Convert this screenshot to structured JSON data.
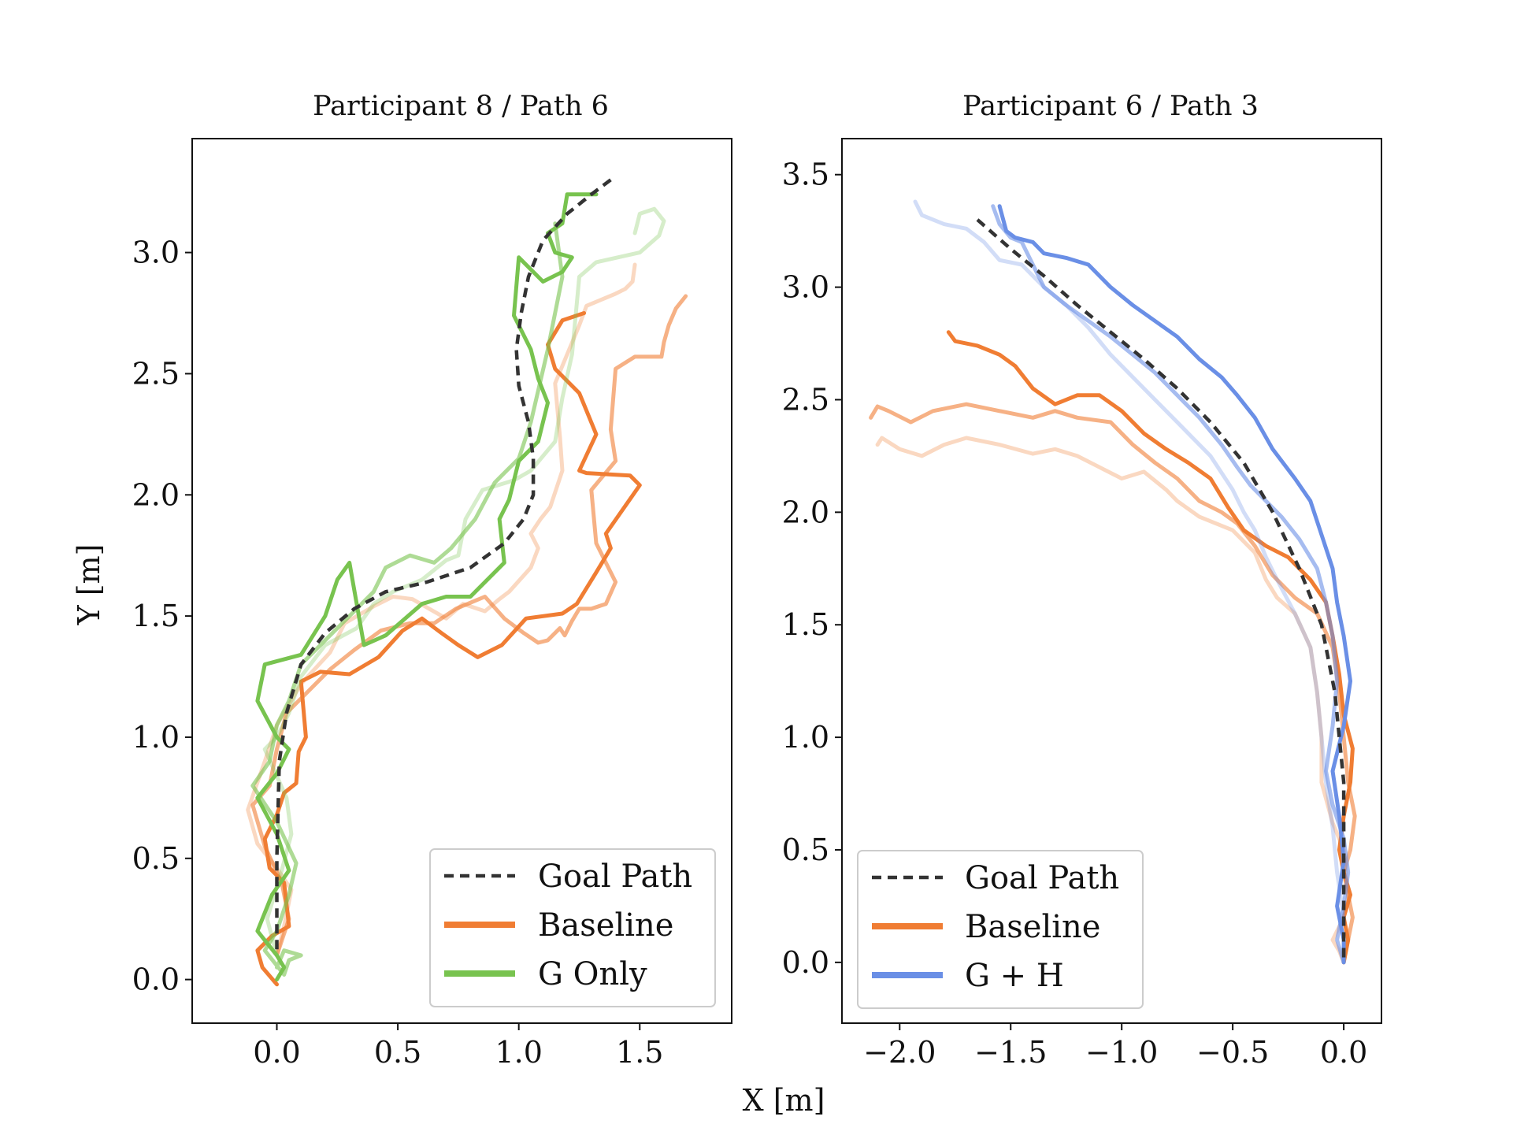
{
  "figure": {
    "xlabel": "X [m]",
    "ylabel": "Y [m]"
  },
  "colors": {
    "goal": "#333333",
    "baseline": "#f07d33",
    "g_only": "#78c34f",
    "g_h": "#6a8fe6"
  },
  "chart_data": [
    {
      "type": "line",
      "title": "Participant 8 / Path 6",
      "xlim": [
        -0.35,
        1.88
      ],
      "ylim": [
        -0.18,
        3.47
      ],
      "xticks": [
        "0.0",
        "0.5",
        "1.0",
        "1.5"
      ],
      "xtick_values": [
        0.0,
        0.5,
        1.0,
        1.5
      ],
      "yticks": [
        "0.0",
        "0.5",
        "1.0",
        "1.5",
        "2.0",
        "2.5",
        "3.0"
      ],
      "ytick_values": [
        0.0,
        0.5,
        1.0,
        1.5,
        2.0,
        2.5,
        3.0
      ],
      "legend": {
        "position": "lower-right",
        "entries": [
          {
            "label": "Goal Path",
            "key": "goal"
          },
          {
            "label": "Baseline",
            "key": "baseline"
          },
          {
            "label": "G Only",
            "key": "g_only"
          }
        ]
      },
      "series": [
        {
          "name": "Baseline",
          "key": "baseline",
          "opacity": 0.3,
          "x": [
            1.48,
            1.47,
            1.44,
            1.4,
            1.28,
            1.25,
            1.15,
            1.17,
            1.18,
            1.13,
            1.09,
            1.05,
            1.08,
            1.05,
            0.96,
            0.92,
            0.86,
            0.77,
            0.7,
            0.63,
            0.56,
            0.48,
            0.4,
            0.28,
            0.22,
            0.1,
            0.0,
            -0.05,
            -0.12,
            -0.08,
            0.0,
            0.06,
            0.03,
            0.0
          ],
          "y": [
            2.95,
            2.88,
            2.85,
            2.83,
            2.78,
            2.7,
            2.46,
            2.24,
            2.1,
            1.95,
            1.9,
            1.84,
            1.78,
            1.7,
            1.6,
            1.57,
            1.52,
            1.55,
            1.49,
            1.53,
            1.57,
            1.58,
            1.54,
            1.47,
            1.35,
            1.22,
            1.05,
            0.9,
            0.7,
            0.56,
            0.46,
            0.37,
            0.22,
            0.1
          ]
        },
        {
          "name": "Baseline",
          "key": "baseline",
          "opacity": 0.6,
          "x": [
            1.69,
            1.65,
            1.62,
            1.6,
            1.59,
            1.55,
            1.48,
            1.4,
            1.38,
            1.4,
            1.3,
            1.32,
            1.4,
            1.36,
            1.3,
            1.25,
            1.22,
            1.19,
            1.17,
            1.12,
            1.08,
            1.02,
            0.94,
            0.86,
            0.74,
            0.65,
            0.55,
            0.43,
            0.32,
            0.22,
            0.12,
            0.04,
            0.0,
            -0.03,
            -0.1,
            -0.05,
            0.02,
            0.05,
            0.0
          ],
          "y": [
            2.82,
            2.77,
            2.7,
            2.63,
            2.57,
            2.57,
            2.57,
            2.52,
            2.27,
            2.14,
            2.02,
            1.8,
            1.64,
            1.55,
            1.53,
            1.53,
            1.48,
            1.42,
            1.45,
            1.4,
            1.39,
            1.43,
            1.49,
            1.58,
            1.53,
            1.47,
            1.47,
            1.44,
            1.36,
            1.28,
            1.18,
            1.1,
            0.95,
            0.8,
            0.72,
            0.55,
            0.4,
            0.25,
            0.1
          ]
        },
        {
          "name": "Baseline",
          "key": "baseline",
          "opacity": 1.0,
          "x": [
            1.27,
            1.18,
            1.12,
            1.15,
            1.25,
            1.32,
            1.25,
            1.28,
            1.46,
            1.5,
            1.36,
            1.38,
            1.32,
            1.24,
            1.18,
            1.03,
            0.93,
            0.83,
            0.75,
            0.68,
            0.6,
            0.52,
            0.42,
            0.3,
            0.18,
            0.1,
            0.12,
            0.09,
            0.08,
            0.03,
            0.0,
            -0.05,
            -0.03,
            0.03,
            0.05,
            -0.02,
            -0.08,
            -0.06,
            0.0
          ],
          "y": [
            2.75,
            2.72,
            2.62,
            2.52,
            2.42,
            2.25,
            2.1,
            2.09,
            2.08,
            2.04,
            1.84,
            1.78,
            1.68,
            1.55,
            1.51,
            1.49,
            1.38,
            1.33,
            1.38,
            1.43,
            1.49,
            1.44,
            1.33,
            1.26,
            1.27,
            1.23,
            1.0,
            0.94,
            0.81,
            0.77,
            0.68,
            0.58,
            0.46,
            0.4,
            0.22,
            0.18,
            0.12,
            0.05,
            -0.02
          ]
        },
        {
          "name": "G Only",
          "key": "g_only",
          "opacity": 0.3,
          "x": [
            1.48,
            1.5,
            1.56,
            1.6,
            1.58,
            1.5,
            1.32,
            1.25,
            1.22,
            1.18,
            1.15,
            1.1,
            1.05,
            0.98,
            0.85,
            0.78,
            0.75,
            0.7,
            0.6,
            0.48,
            0.4,
            0.33,
            0.2,
            0.1,
            0.05,
            0.0,
            -0.05,
            0.04,
            0.06,
            0.02,
            -0.04,
            0.0
          ],
          "y": [
            3.08,
            3.16,
            3.18,
            3.13,
            3.07,
            3.0,
            2.96,
            2.9,
            2.58,
            2.4,
            2.22,
            2.16,
            2.1,
            2.06,
            2.02,
            1.9,
            1.75,
            1.73,
            1.65,
            1.6,
            1.55,
            1.45,
            1.38,
            1.25,
            1.1,
            1.0,
            0.95,
            0.75,
            0.6,
            0.45,
            0.25,
            0.1
          ]
        },
        {
          "name": "G Only",
          "key": "g_only",
          "opacity": 0.6,
          "x": [
            1.15,
            1.18,
            1.12,
            1.05,
            1.0,
            0.95,
            0.9,
            0.82,
            0.72,
            0.65,
            0.55,
            0.45,
            0.4,
            0.3,
            0.2,
            0.1,
            0.05,
            0.0,
            -0.03,
            -0.1,
            0.0,
            0.08,
            0.05,
            0.0,
            -0.05,
            0.03,
            0.05,
            0.1,
            0.03,
            0.0
          ],
          "y": [
            3.12,
            2.9,
            2.6,
            2.3,
            2.15,
            2.1,
            2.05,
            1.9,
            1.78,
            1.72,
            1.75,
            1.7,
            1.6,
            1.5,
            1.4,
            1.3,
            1.15,
            1.05,
            0.9,
            0.8,
            0.65,
            0.48,
            0.35,
            0.2,
            0.12,
            0.02,
            0.08,
            0.1,
            0.12,
            0.05
          ]
        },
        {
          "name": "G Only",
          "key": "g_only",
          "opacity": 1.0,
          "x": [
            1.32,
            1.28,
            1.2,
            1.18,
            1.12,
            1.15,
            1.22,
            1.18,
            1.1,
            1.0,
            0.98,
            1.05,
            1.08,
            1.12,
            1.08,
            1.0,
            0.96,
            0.92,
            0.94,
            0.8,
            0.7,
            0.6,
            0.45,
            0.36,
            0.3,
            0.25,
            0.2,
            0.1,
            -0.05,
            -0.08,
            0.0,
            0.05,
            0.0,
            -0.08,
            0.0,
            0.05,
            -0.02,
            -0.08,
            0.0,
            0.03,
            0.0
          ],
          "y": [
            3.24,
            3.24,
            3.24,
            3.12,
            3.08,
            3.0,
            2.98,
            2.92,
            2.88,
            2.98,
            2.74,
            2.6,
            2.48,
            2.38,
            2.22,
            2.14,
            1.98,
            1.9,
            1.72,
            1.58,
            1.58,
            1.55,
            1.42,
            1.38,
            1.72,
            1.65,
            1.5,
            1.34,
            1.3,
            1.15,
            1.0,
            0.95,
            0.85,
            0.75,
            0.6,
            0.45,
            0.35,
            0.2,
            0.1,
            0.05,
            0.0
          ]
        }
      ],
      "goal_path": {
        "x": [
          1.38,
          1.3,
          1.2,
          1.1,
          1.04,
          1.01,
          0.99,
          1.0,
          1.04,
          1.06,
          1.06,
          1.02,
          0.94,
          0.8,
          0.62,
          0.45,
          0.32,
          0.2,
          0.1,
          0.04,
          0.01,
          0.0,
          0.0
        ],
        "y": [
          3.3,
          3.24,
          3.16,
          3.05,
          2.9,
          2.75,
          2.6,
          2.45,
          2.3,
          2.15,
          2.0,
          1.9,
          1.8,
          1.7,
          1.64,
          1.6,
          1.53,
          1.43,
          1.3,
          1.1,
          0.9,
          0.5,
          0.1
        ]
      }
    },
    {
      "type": "line",
      "title": "Participant 6 / Path 3",
      "xlim": [
        -2.26,
        0.17
      ],
      "ylim": [
        -0.27,
        3.66
      ],
      "xticks": [
        "−2.0",
        "−1.5",
        "−1.0",
        "−0.5",
        "0.0"
      ],
      "xtick_values": [
        -2.0,
        -1.5,
        -1.0,
        -0.5,
        0.0
      ],
      "yticks": [
        "0.0",
        "0.5",
        "1.0",
        "1.5",
        "2.0",
        "2.5",
        "3.0",
        "3.5"
      ],
      "ytick_values": [
        0.0,
        0.5,
        1.0,
        1.5,
        2.0,
        2.5,
        3.0,
        3.5
      ],
      "legend": {
        "position": "lower-left",
        "entries": [
          {
            "label": "Goal Path",
            "key": "goal"
          },
          {
            "label": "Baseline",
            "key": "baseline"
          },
          {
            "label": "G + H",
            "key": "g_h"
          }
        ]
      },
      "series": [
        {
          "name": "Baseline",
          "key": "baseline",
          "opacity": 0.3,
          "x": [
            -2.1,
            -2.08,
            -2.0,
            -1.9,
            -1.8,
            -1.7,
            -1.55,
            -1.4,
            -1.3,
            -1.2,
            -1.1,
            -1.0,
            -0.9,
            -0.8,
            -0.75,
            -0.65,
            -0.5,
            -0.4,
            -0.35,
            -0.3,
            -0.22,
            -0.15,
            -0.12,
            -0.1,
            -0.1,
            -0.05,
            0.0,
            0.02,
            0.0,
            -0.05,
            -0.02,
            0.0
          ],
          "y": [
            2.3,
            2.33,
            2.28,
            2.25,
            2.3,
            2.33,
            2.3,
            2.26,
            2.28,
            2.25,
            2.2,
            2.15,
            2.18,
            2.1,
            2.05,
            1.98,
            1.92,
            1.82,
            1.7,
            1.62,
            1.55,
            1.4,
            1.2,
            1.0,
            0.8,
            0.62,
            0.5,
            0.3,
            0.2,
            0.1,
            0.05,
            0.0
          ]
        },
        {
          "name": "Baseline",
          "key": "baseline",
          "opacity": 0.6,
          "x": [
            -2.13,
            -2.1,
            -2.05,
            -1.95,
            -1.85,
            -1.7,
            -1.55,
            -1.4,
            -1.3,
            -1.2,
            -1.05,
            -0.95,
            -0.85,
            -0.75,
            -0.65,
            -0.55,
            -0.48,
            -0.4,
            -0.32,
            -0.22,
            -0.12,
            -0.05,
            -0.02,
            0.0,
            0.02,
            0.05,
            0.03,
            0.0,
            0.02,
            0.04,
            0.02,
            0.0
          ],
          "y": [
            2.42,
            2.47,
            2.45,
            2.4,
            2.45,
            2.48,
            2.45,
            2.42,
            2.45,
            2.42,
            2.4,
            2.3,
            2.22,
            2.15,
            2.05,
            2.0,
            1.95,
            1.85,
            1.72,
            1.62,
            1.55,
            1.4,
            1.2,
            1.0,
            0.8,
            0.65,
            0.5,
            0.4,
            0.3,
            0.2,
            0.1,
            0.0
          ]
        },
        {
          "name": "Baseline",
          "key": "baseline",
          "opacity": 1.0,
          "x": [
            -1.78,
            -1.75,
            -1.65,
            -1.55,
            -1.48,
            -1.4,
            -1.3,
            -1.2,
            -1.1,
            -1.0,
            -0.9,
            -0.8,
            -0.7,
            -0.6,
            -0.52,
            -0.45,
            -0.35,
            -0.25,
            -0.15,
            -0.08,
            -0.05,
            -0.02,
            0.0,
            0.04,
            0.03,
            0.0,
            -0.02,
            0.0,
            0.03,
            0.0,
            0.02,
            0.0
          ],
          "y": [
            2.8,
            2.76,
            2.74,
            2.7,
            2.65,
            2.55,
            2.48,
            2.52,
            2.52,
            2.45,
            2.35,
            2.28,
            2.22,
            2.15,
            2.02,
            1.92,
            1.85,
            1.8,
            1.7,
            1.6,
            1.45,
            1.28,
            1.1,
            0.95,
            0.8,
            0.65,
            0.5,
            0.4,
            0.3,
            0.2,
            0.1,
            0.0
          ]
        },
        {
          "name": "G + H",
          "key": "g_h",
          "opacity": 0.3,
          "x": [
            -1.93,
            -1.9,
            -1.8,
            -1.7,
            -1.62,
            -1.55,
            -1.45,
            -1.35,
            -1.25,
            -1.15,
            -1.05,
            -0.95,
            -0.85,
            -0.75,
            -0.6,
            -0.5,
            -0.45,
            -0.4,
            -0.35,
            -0.3,
            -0.22,
            -0.15,
            -0.12,
            -0.1,
            -0.08,
            -0.05,
            -0.03,
            0.0
          ],
          "y": [
            3.38,
            3.32,
            3.28,
            3.26,
            3.2,
            3.12,
            3.1,
            3.0,
            2.92,
            2.82,
            2.7,
            2.6,
            2.5,
            2.4,
            2.25,
            2.1,
            2.0,
            1.92,
            1.8,
            1.7,
            1.55,
            1.4,
            1.2,
            1.0,
            0.8,
            0.6,
            0.4,
            0.2
          ]
        },
        {
          "name": "G + H",
          "key": "g_h",
          "opacity": 0.6,
          "x": [
            -1.58,
            -1.55,
            -1.5,
            -1.45,
            -1.4,
            -1.35,
            -1.25,
            -1.15,
            -1.05,
            -0.95,
            -0.85,
            -0.75,
            -0.65,
            -0.55,
            -0.48,
            -0.42,
            -0.35,
            -0.28,
            -0.2,
            -0.12,
            -0.08,
            -0.05,
            -0.03,
            -0.05,
            -0.08,
            -0.05,
            0.0,
            0.02,
            0.0,
            -0.03,
            0.0
          ],
          "y": [
            3.36,
            3.28,
            3.22,
            3.2,
            3.1,
            3.0,
            2.92,
            2.85,
            2.78,
            2.7,
            2.62,
            2.52,
            2.42,
            2.3,
            2.2,
            2.12,
            2.05,
            1.98,
            1.88,
            1.75,
            1.6,
            1.45,
            1.25,
            1.05,
            0.85,
            0.7,
            0.55,
            0.4,
            0.25,
            0.1,
            0.0
          ]
        },
        {
          "name": "G + H",
          "key": "g_h",
          "opacity": 1.0,
          "x": [
            -1.55,
            -1.52,
            -1.48,
            -1.4,
            -1.35,
            -1.25,
            -1.15,
            -1.05,
            -0.95,
            -0.85,
            -0.75,
            -0.65,
            -0.55,
            -0.48,
            -0.4,
            -0.32,
            -0.22,
            -0.15,
            -0.1,
            -0.05,
            -0.03,
            0.0,
            0.03,
            0.0,
            -0.05,
            -0.02,
            0.0,
            -0.03,
            0.0,
            0.0
          ],
          "y": [
            3.36,
            3.25,
            3.22,
            3.2,
            3.15,
            3.13,
            3.1,
            3.0,
            2.92,
            2.85,
            2.78,
            2.68,
            2.6,
            2.52,
            2.42,
            2.28,
            2.15,
            2.05,
            1.9,
            1.75,
            1.6,
            1.45,
            1.25,
            1.05,
            0.85,
            0.65,
            0.45,
            0.25,
            0.1,
            0.0
          ]
        }
      ],
      "goal_path": {
        "x": [
          -1.65,
          -1.5,
          -1.35,
          -1.2,
          -1.05,
          -0.9,
          -0.75,
          -0.6,
          -0.45,
          -0.32,
          -0.2,
          -0.1,
          -0.04,
          0.0,
          0.0
        ],
        "y": [
          3.3,
          3.17,
          3.05,
          2.92,
          2.8,
          2.68,
          2.55,
          2.4,
          2.22,
          2.0,
          1.75,
          1.5,
          1.2,
          0.8,
          0.0
        ]
      }
    }
  ]
}
